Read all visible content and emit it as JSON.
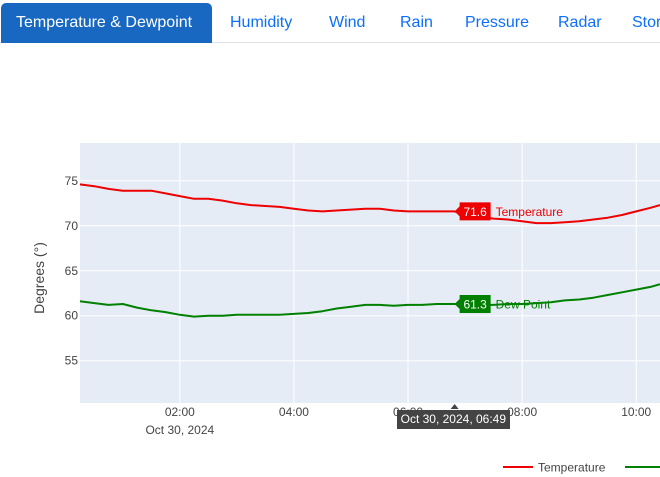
{
  "tabs": [
    {
      "label": "Temperature & Dewpoint",
      "active": true
    },
    {
      "label": "Humidity"
    },
    {
      "label": "Wind"
    },
    {
      "label": "Rain"
    },
    {
      "label": "Pressure"
    },
    {
      "label": "Radar"
    },
    {
      "label": "Storm"
    }
  ],
  "colors": {
    "accent": "#1868c2",
    "temperature": "#ee0000",
    "dewpoint": "#008000",
    "plot_bg": "#e5ecf6"
  },
  "chart_data": {
    "type": "line",
    "ylabel": "Degrees (°)",
    "y_ticks": [
      "75",
      "70",
      "65",
      "60",
      "55"
    ],
    "x_ticks": [
      "02:00",
      "04:00",
      "06:00",
      "08:00",
      "10:00"
    ],
    "x_subtitle": "Oct 30, 2024",
    "ylim": [
      50.3,
      79.2
    ],
    "xlim": [
      "00:15",
      "10:25"
    ],
    "hover": {
      "x_label": "Oct 30, 2024, 06:49",
      "temperature_value": "71.6",
      "dewpoint_value": "61.3"
    },
    "series": [
      {
        "name": "Temperature",
        "color": "#ee0000",
        "x": [
          "00:15",
          "00:30",
          "00:45",
          "01:00",
          "01:15",
          "01:30",
          "01:45",
          "02:00",
          "02:15",
          "02:30",
          "02:45",
          "03:00",
          "03:15",
          "03:30",
          "03:45",
          "04:00",
          "04:15",
          "04:30",
          "04:45",
          "05:00",
          "05:15",
          "05:30",
          "05:45",
          "06:00",
          "06:15",
          "06:30",
          "06:49",
          "07:00",
          "07:15",
          "07:30",
          "07:45",
          "08:00",
          "08:15",
          "08:30",
          "08:45",
          "09:00",
          "09:15",
          "09:30",
          "09:45",
          "10:00",
          "10:15",
          "10:25"
        ],
        "y": [
          74.6,
          74.4,
          74.1,
          73.9,
          73.9,
          73.9,
          73.6,
          73.3,
          73.0,
          73.0,
          72.8,
          72.5,
          72.3,
          72.2,
          72.1,
          71.9,
          71.7,
          71.6,
          71.7,
          71.8,
          71.9,
          71.9,
          71.7,
          71.6,
          71.6,
          71.6,
          71.6,
          71.2,
          71.0,
          70.8,
          70.7,
          70.5,
          70.3,
          70.3,
          70.4,
          70.5,
          70.7,
          70.9,
          71.2,
          71.6,
          72.0,
          72.3
        ]
      },
      {
        "name": "Dew Point",
        "color": "#008000",
        "x": [
          "00:15",
          "00:30",
          "00:45",
          "01:00",
          "01:15",
          "01:30",
          "01:45",
          "02:00",
          "02:15",
          "02:30",
          "02:45",
          "03:00",
          "03:15",
          "03:30",
          "03:45",
          "04:00",
          "04:15",
          "04:30",
          "04:45",
          "05:00",
          "05:15",
          "05:30",
          "05:45",
          "06:00",
          "06:15",
          "06:30",
          "06:49",
          "07:00",
          "07:15",
          "07:30",
          "07:45",
          "08:00",
          "08:15",
          "08:30",
          "08:45",
          "09:00",
          "09:15",
          "09:30",
          "09:45",
          "10:00",
          "10:15",
          "10:25"
        ],
        "y": [
          61.6,
          61.4,
          61.2,
          61.3,
          60.9,
          60.6,
          60.4,
          60.1,
          59.9,
          60.0,
          60.0,
          60.1,
          60.1,
          60.1,
          60.1,
          60.2,
          60.3,
          60.5,
          60.8,
          61.0,
          61.2,
          61.2,
          61.1,
          61.2,
          61.2,
          61.3,
          61.3,
          61.2,
          61.2,
          61.2,
          61.3,
          61.3,
          61.4,
          61.5,
          61.7,
          61.8,
          62.0,
          62.3,
          62.6,
          62.9,
          63.2,
          63.5
        ]
      }
    ],
    "legend": {
      "placement": "bottom-right",
      "entries": [
        "Temperature"
      ]
    }
  }
}
